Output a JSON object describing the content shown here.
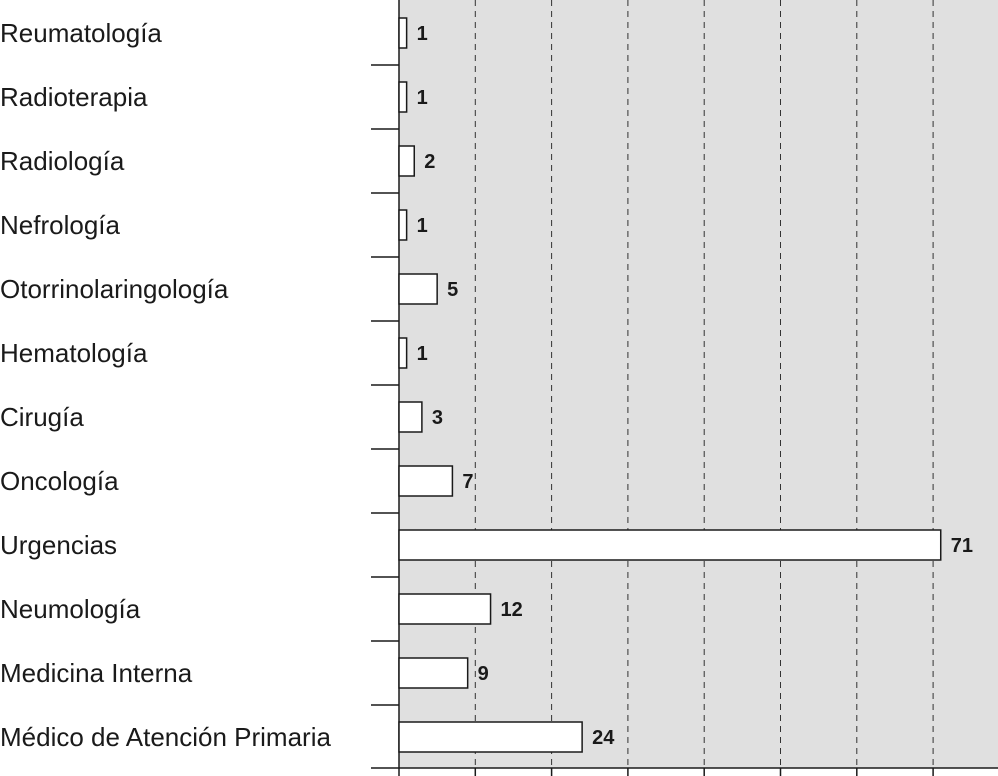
{
  "chart_data": {
    "type": "bar",
    "orientation": "horizontal",
    "categories": [
      "Reumatología",
      "Radioterapia",
      "Radiología",
      "Nefrología",
      "Otorrinolaringología",
      "Hematología",
      "Cirugía",
      "Oncología",
      "Urgencias",
      "Neumología",
      "Medicina Interna",
      "Médico de Atención Primaria"
    ],
    "values": [
      1,
      1,
      2,
      1,
      5,
      1,
      3,
      7,
      71,
      12,
      9,
      24
    ],
    "value_labels": [
      "1",
      "1",
      "2",
      "1",
      "5",
      "1",
      "3",
      "7",
      "71",
      "12",
      "9",
      "24"
    ],
    "title": "",
    "xlabel": "",
    "ylabel": "",
    "xlim": [
      0,
      78
    ],
    "grid": true,
    "grid_style": "dashed vertical",
    "plot_background": "#e0e0e0",
    "bar_fill": "#ffffff",
    "bar_stroke": "#1a1a1a"
  }
}
